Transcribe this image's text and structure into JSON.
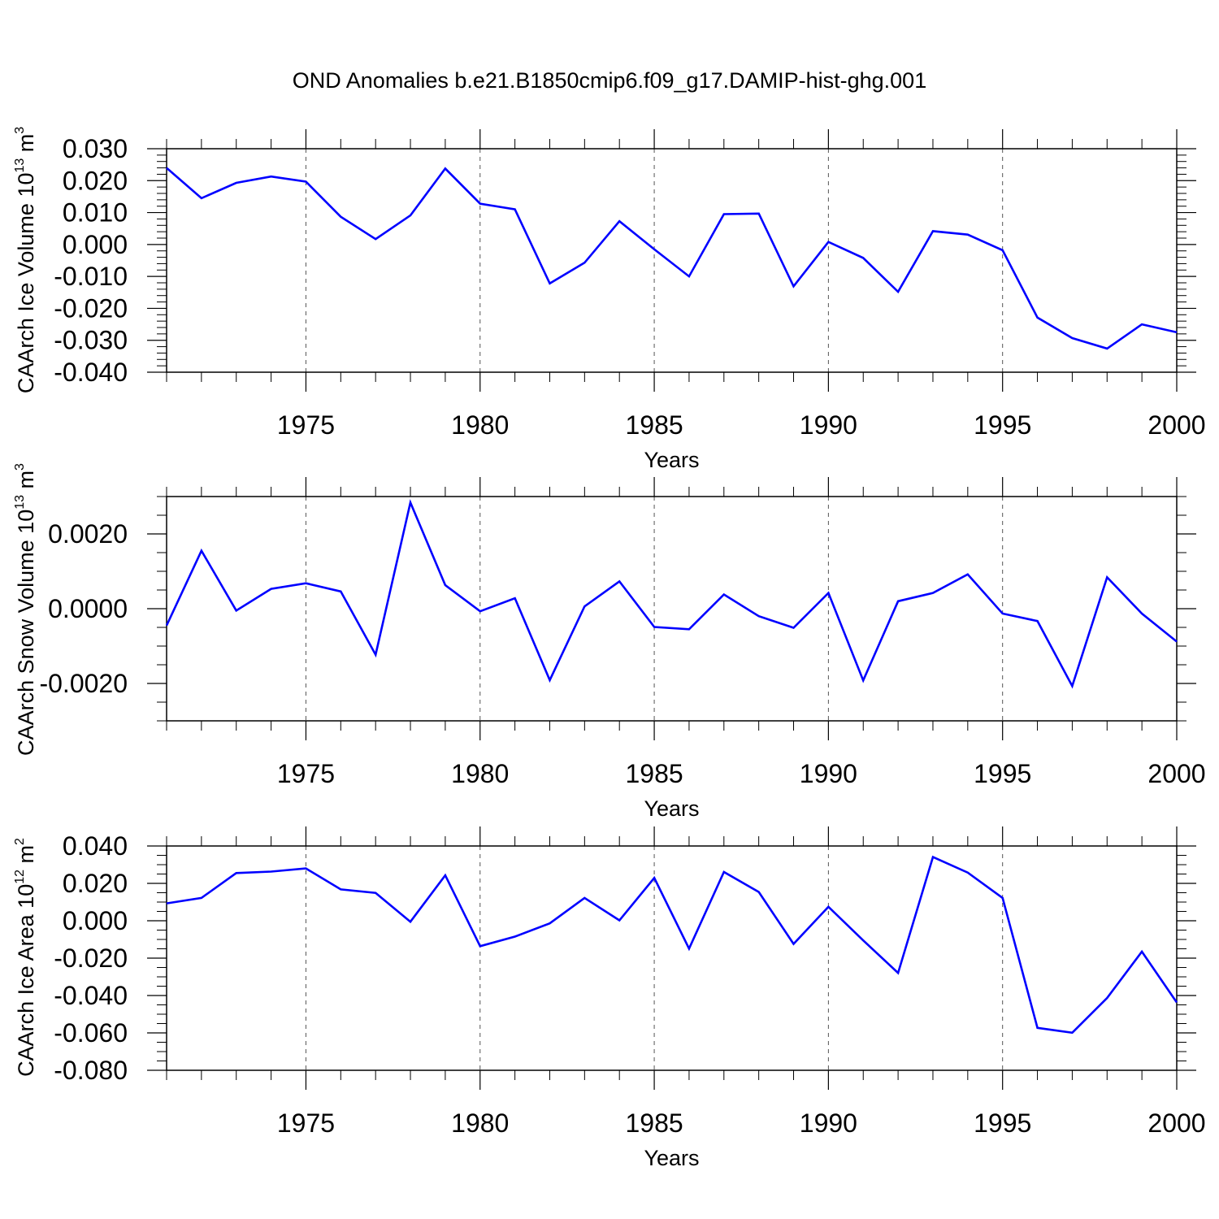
{
  "title": "OND Anomalies b.e21.B1850cmip6.f09_g17.DAMIP-hist-ghg.001",
  "chart_data": [
    {
      "type": "line",
      "xlabel": "Years",
      "ylabel": {
        "text": "CAArch Ice Volume 10",
        "sup": "13",
        "unit": " m",
        "unit_sup": "3"
      },
      "xlim": [
        1971,
        2000
      ],
      "ylim": [
        -0.04,
        0.03
      ],
      "x_ticks": [
        "1975",
        "1980",
        "1985",
        "1990",
        "1995",
        "2000"
      ],
      "y_ticks": [
        "0.030",
        "0.020",
        "0.010",
        "0.000",
        "-0.010",
        "-0.020",
        "-0.030",
        "-0.040"
      ],
      "dashed_grid_x": [
        1975,
        1980,
        1985,
        1990,
        1995
      ],
      "line_color": "#0000ff",
      "series": [
        {
          "x": [
            1971,
            1972,
            1973,
            1974,
            1975,
            1976,
            1977,
            1978,
            1979,
            1980,
            1981,
            1982,
            1983,
            1984,
            1985,
            1986,
            1987,
            1988,
            1989,
            1990,
            1991,
            1992,
            1993,
            1994,
            1995,
            1996,
            1997,
            1998,
            1999,
            2000
          ],
          "values": [
            0.024,
            0.0145,
            0.0193,
            0.0213,
            0.0197,
            0.0087,
            0.0017,
            0.0091,
            0.0238,
            0.0128,
            0.011,
            -0.0122,
            -0.0057,
            0.0073,
            -0.0015,
            -0.01,
            0.0095,
            0.0097,
            -0.0131,
            0.0008,
            -0.0042,
            -0.0148,
            0.0042,
            0.0031,
            -0.0018,
            -0.0229,
            -0.0293,
            -0.0326,
            -0.025,
            -0.0275
          ]
        }
      ]
    },
    {
      "type": "line",
      "xlabel": "Years",
      "ylabel": {
        "text": "CAArch Snow Volume 10",
        "sup": "13",
        "unit": " m",
        "unit_sup": "3"
      },
      "xlim": [
        1971,
        2000
      ],
      "ylim": [
        -0.003,
        0.003
      ],
      "x_ticks": [
        "1975",
        "1980",
        "1985",
        "1990",
        "1995",
        "2000"
      ],
      "y_ticks": [
        "0.0020",
        "0.0000",
        "-0.0020"
      ],
      "dashed_grid_x": [
        1975,
        1980,
        1985,
        1990,
        1995
      ],
      "line_color": "#0000ff",
      "series": [
        {
          "x": [
            1971,
            1972,
            1973,
            1974,
            1975,
            1976,
            1977,
            1978,
            1979,
            1980,
            1981,
            1982,
            1983,
            1984,
            1985,
            1986,
            1987,
            1988,
            1989,
            1990,
            1991,
            1992,
            1993,
            1994,
            1995,
            1996,
            1997,
            1998,
            1999,
            2000
          ],
          "values": [
            -0.00045,
            0.00155,
            -5e-05,
            0.00053,
            0.00068,
            0.00046,
            -0.00123,
            0.00284,
            0.00063,
            -7e-05,
            0.00028,
            -0.00191,
            6e-05,
            0.00073,
            -0.00049,
            -0.00055,
            0.00038,
            -0.0002,
            -0.00051,
            0.00042,
            -0.00192,
            0.0002,
            0.00042,
            0.00092,
            -0.00013,
            -0.00033,
            -0.00207,
            0.00084,
            -0.00013,
            -0.00088
          ]
        }
      ]
    },
    {
      "type": "line",
      "xlabel": "Years",
      "ylabel": {
        "text": "CAArch Ice Area 10",
        "sup": "12",
        "unit": " m",
        "unit_sup": "2"
      },
      "xlim": [
        1971,
        2000
      ],
      "ylim": [
        -0.08,
        0.04
      ],
      "x_ticks": [
        "1975",
        "1980",
        "1985",
        "1990",
        "1995",
        "2000"
      ],
      "y_ticks": [
        "0.040",
        "0.020",
        "0.000",
        "-0.020",
        "-0.040",
        "-0.060",
        "-0.080"
      ],
      "dashed_grid_x": [
        1975,
        1980,
        1985,
        1990,
        1995
      ],
      "line_color": "#0000ff",
      "series": [
        {
          "x": [
            1971,
            1972,
            1973,
            1974,
            1975,
            1976,
            1977,
            1978,
            1979,
            1980,
            1981,
            1982,
            1983,
            1984,
            1985,
            1986,
            1987,
            1988,
            1989,
            1990,
            1991,
            1992,
            1993,
            1994,
            1995,
            1996,
            1997,
            1998,
            1999,
            2000
          ],
          "values": [
            0.0093,
            0.0122,
            0.0255,
            0.0263,
            0.028,
            0.0168,
            0.0149,
            -0.0005,
            0.0243,
            -0.0136,
            -0.0085,
            -0.0014,
            0.0122,
            0.0002,
            0.0229,
            -0.0149,
            0.0261,
            0.0154,
            -0.0124,
            0.0075,
            -0.0105,
            -0.0279,
            0.0341,
            0.0258,
            0.0122,
            -0.0573,
            -0.0599,
            -0.0413,
            -0.0165,
            -0.0437
          ]
        }
      ]
    }
  ]
}
